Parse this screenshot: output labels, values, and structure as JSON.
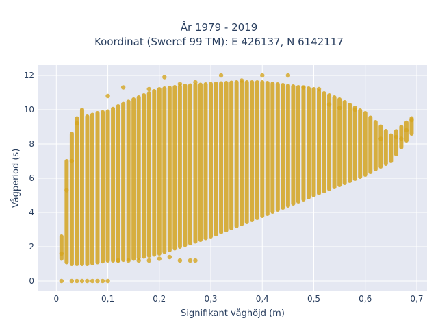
{
  "chart_data": {
    "type": "scatter",
    "title_line1": "År 1979 - 2019",
    "title_line2": "Koordinat (Sweref 99 TM): E 426137, N 6142117",
    "xlabel": "Signifikant våghöjd (m)",
    "ylabel": "Vågperiod (s)",
    "xlim": [
      -0.035,
      0.72
    ],
    "ylim": [
      -0.6,
      12.6
    ],
    "x_ticks": [
      0,
      0.1,
      0.2,
      0.3,
      0.4,
      0.5,
      0.6,
      0.7
    ],
    "x_tick_labels": [
      "0",
      "0,1",
      "0,2",
      "0,3",
      "0,4",
      "0,5",
      "0,6",
      "0,7"
    ],
    "y_ticks": [
      0,
      2,
      4,
      6,
      8,
      10,
      12
    ],
    "y_tick_labels": [
      "0",
      "2",
      "4",
      "6",
      "8",
      "10",
      "12"
    ],
    "grid": true,
    "plot_background": "#e5e8f2",
    "marker_color": "#d4a520",
    "x_step": 0.01,
    "envelope": {
      "x": [
        0.01,
        0.02,
        0.03,
        0.04,
        0.05,
        0.06,
        0.08,
        0.1,
        0.12,
        0.15,
        0.2,
        0.25,
        0.3,
        0.35,
        0.4,
        0.45,
        0.5,
        0.55,
        0.6,
        0.65,
        0.69
      ],
      "y_low": [
        1.3,
        1.1,
        1.0,
        1.0,
        1.0,
        1.0,
        1.1,
        1.2,
        1.2,
        1.3,
        1.6,
        2.1,
        2.6,
        3.2,
        3.8,
        4.4,
        5.0,
        5.6,
        6.2,
        7.0,
        8.6
      ],
      "y_high": [
        2.6,
        7.0,
        8.6,
        9.5,
        10.0,
        9.6,
        9.8,
        9.9,
        10.2,
        10.6,
        11.2,
        11.4,
        11.5,
        11.6,
        11.6,
        11.4,
        11.2,
        10.6,
        9.8,
        8.5,
        9.5
      ]
    },
    "outliers": [
      [
        0.01,
        0
      ],
      [
        0.03,
        0
      ],
      [
        0.04,
        0
      ],
      [
        0.05,
        0
      ],
      [
        0.06,
        0
      ],
      [
        0.07,
        0
      ],
      [
        0.08,
        0
      ],
      [
        0.09,
        0
      ],
      [
        0.1,
        0
      ],
      [
        0.12,
        1.2
      ],
      [
        0.14,
        1.2
      ],
      [
        0.16,
        1.2
      ],
      [
        0.18,
        1.2
      ],
      [
        0.2,
        1.3
      ],
      [
        0.22,
        1.4
      ],
      [
        0.24,
        1.2
      ],
      [
        0.26,
        1.2
      ],
      [
        0.27,
        1.2
      ],
      [
        0.1,
        10.8
      ],
      [
        0.13,
        11.3
      ],
      [
        0.18,
        11.2
      ],
      [
        0.21,
        11.9
      ],
      [
        0.24,
        11.5
      ],
      [
        0.27,
        11.6
      ],
      [
        0.32,
        12.0
      ],
      [
        0.36,
        11.7
      ],
      [
        0.4,
        12.0
      ],
      [
        0.45,
        12.0
      ],
      [
        0.48,
        11.3
      ],
      [
        0.51,
        11.2
      ],
      [
        0.53,
        10.3
      ],
      [
        0.55,
        10.1
      ],
      [
        0.58,
        10.0
      ],
      [
        0.63,
        8.3
      ],
      [
        0.66,
        8.4
      ],
      [
        0.67,
        8.3
      ],
      [
        0.68,
        8.8
      ],
      [
        0.69,
        9.4
      ],
      [
        0.03,
        7.0
      ],
      [
        0.04,
        9.2
      ],
      [
        0.02,
        5.3
      ],
      [
        0.01,
        1.6
      ]
    ]
  }
}
